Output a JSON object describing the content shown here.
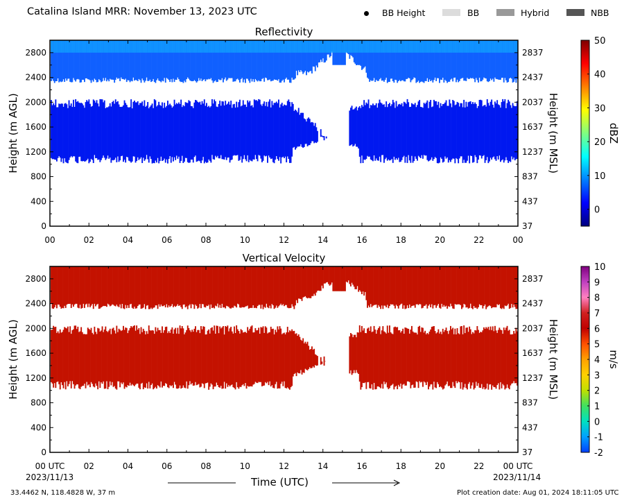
{
  "header": {
    "title": "Catalina Island MRR:  November 13, 2023 UTC",
    "legend": [
      {
        "label": "BB Height",
        "kind": "dot",
        "color": "#000000"
      },
      {
        "label": "BB",
        "kind": "swatch",
        "color": "#dcdcdc"
      },
      {
        "label": "Hybrid",
        "kind": "swatch",
        "color": "#999999"
      },
      {
        "label": "NBB",
        "kind": "swatch",
        "color": "#555555"
      }
    ]
  },
  "chart_data": [
    {
      "type": "heatmap",
      "title": "Reflectivity",
      "ylabel": "Height (m AGL)",
      "ylabel_right": "Height (m MSL)",
      "ylim": [
        0,
        3000
      ],
      "yticks": [
        0,
        400,
        800,
        1200,
        1600,
        2000,
        2400,
        2800
      ],
      "yticks_right": [
        "37",
        "437",
        "837",
        "1237",
        "1637",
        "2037",
        "2437",
        "2837"
      ],
      "xlim": [
        0,
        24
      ],
      "xtick_labels": [
        "00",
        "02",
        "04",
        "06",
        "08",
        "10",
        "12",
        "14",
        "16",
        "18",
        "20",
        "22",
        "00"
      ],
      "colorbar": {
        "label": "dBZ",
        "range": [
          -5,
          50
        ],
        "ticks": [
          "0",
          "10",
          "20",
          "30",
          "40",
          "50"
        ],
        "stops": [
          "#00007f",
          "#0000ff",
          "#0080ff",
          "#00ffff",
          "#80ff80",
          "#ffff00",
          "#ff8000",
          "#ff0000",
          "#7f0000"
        ]
      },
      "layers": [
        {
          "name": "upper",
          "x_start": 0,
          "x_end": 24,
          "y_bottom": 2400,
          "y_top": 3000,
          "color": "#1060ff",
          "top_color": "#10a0ff"
        },
        {
          "name": "lower",
          "x_start": 0,
          "x_end": 24,
          "y_bottom": 1150,
          "y_top": 2050,
          "color": "#0018f0",
          "top_color": "#0018f0"
        }
      ]
    },
    {
      "type": "heatmap",
      "title": "Vertical Velocity",
      "ylabel": "Height (m AGL)",
      "ylabel_right": "Height (m MSL)",
      "ylim": [
        0,
        3000
      ],
      "yticks": [
        0,
        400,
        800,
        1200,
        1600,
        2000,
        2400,
        2800
      ],
      "yticks_right": [
        "37",
        "437",
        "837",
        "1237",
        "1637",
        "2037",
        "2437",
        "2837"
      ],
      "xlim": [
        0,
        24
      ],
      "xtick_labels": [
        "00 UTC",
        "02",
        "04",
        "06",
        "08",
        "10",
        "12",
        "14",
        "16",
        "18",
        "20",
        "22",
        "00 UTC"
      ],
      "colorbar": {
        "label": "m/s",
        "range": [
          -2,
          10
        ],
        "ticks": [
          "-2",
          "-1",
          "0",
          "1",
          "2",
          "3",
          "4",
          "5",
          "6",
          "7",
          "8",
          "9",
          "10"
        ],
        "stops": [
          "#0040ff",
          "#00a0ff",
          "#00e0c0",
          "#40e060",
          "#c0e000",
          "#ffd000",
          "#ffa000",
          "#ff5000",
          "#c00000",
          "#d02020",
          "#ff80c0",
          "#c040c0",
          "#800080"
        ]
      },
      "layers": [
        {
          "name": "upper",
          "x_start": 0,
          "x_end": 24,
          "y_bottom": 2400,
          "y_top": 3000,
          "color": "#c41200",
          "top_color": "#c41200"
        },
        {
          "name": "lower",
          "x_start": 0,
          "x_end": 24,
          "y_bottom": 1150,
          "y_top": 2050,
          "color": "#c41200",
          "top_color": "#c41200"
        }
      ]
    }
  ],
  "footer": {
    "date_left": "2023/11/13",
    "date_right": "2023/11/14",
    "xlabel": "Time (UTC)",
    "location": "33.4462 N, 118.4828 W, 37 m",
    "creation": "Plot creation date: Aug 01, 2024 18:11:05 UTC"
  }
}
